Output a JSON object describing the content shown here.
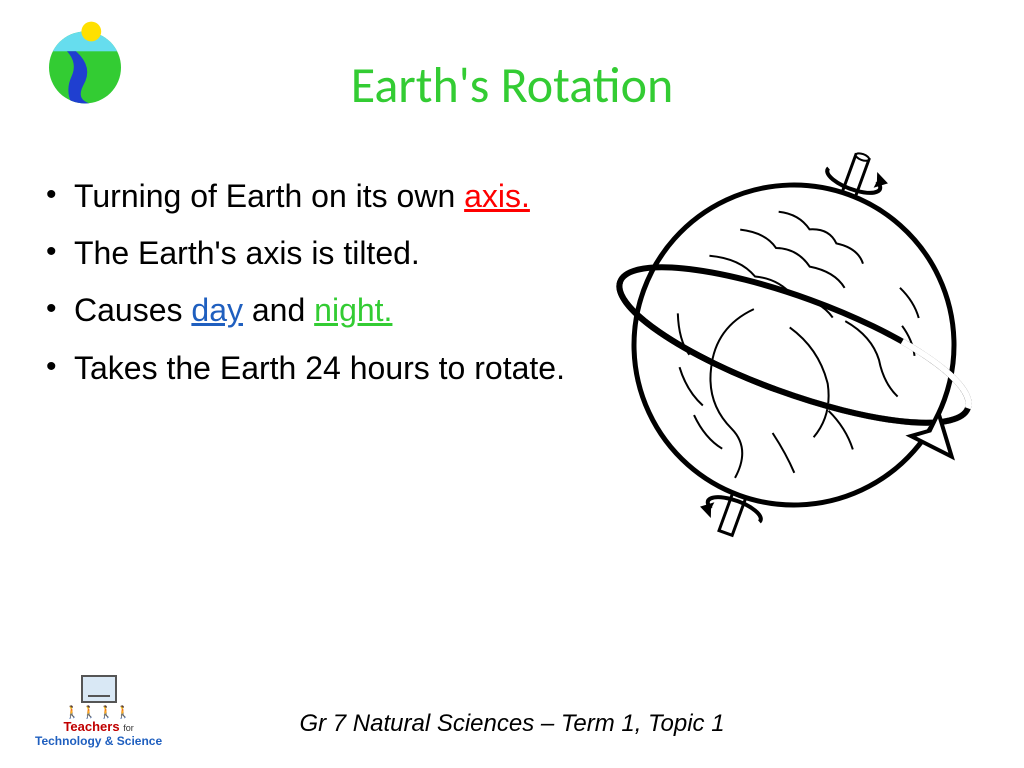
{
  "title": {
    "text": "Earth's Rotation",
    "color": "#33cc33"
  },
  "bullets": [
    {
      "parts": [
        {
          "text": "Turning of Earth on its own ",
          "color": "#000000",
          "underline": false
        },
        {
          "text": "axis.",
          "color": "#ff0000",
          "underline": true
        }
      ]
    },
    {
      "parts": [
        {
          "text": "The Earth's axis is tilted.",
          "color": "#000000",
          "underline": false
        }
      ]
    },
    {
      "parts": [
        {
          "text": "Causes ",
          "color": "#000000",
          "underline": false
        },
        {
          "text": "day",
          "color": "#1f5fbf",
          "underline": true
        },
        {
          "text": " and ",
          "color": "#000000",
          "underline": false
        },
        {
          "text": "night.",
          "color": "#33cc33",
          "underline": true
        }
      ]
    },
    {
      "parts": [
        {
          "text": "Takes the Earth 24 hours to rotate.",
          "color": "#000000",
          "underline": false
        }
      ]
    }
  ],
  "footer": "Gr 7 Natural Sciences – Term 1, Topic 1",
  "top_logo": {
    "land_color": "#33cc33",
    "sky_color": "#66ddee",
    "river_color": "#1f3fd0",
    "sun_color": "#ffe000"
  },
  "globe": {
    "stroke": "#000000",
    "fill": "#ffffff",
    "tilt_deg": 20
  },
  "bottom_logo": {
    "line1_a": "Teachers",
    "line1_b": "for",
    "line2": "Technology & Science"
  }
}
